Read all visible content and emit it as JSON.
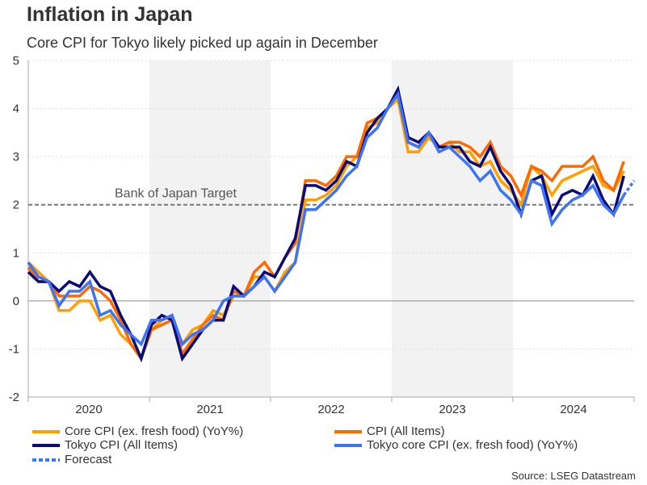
{
  "title": "Inflation in Japan",
  "subtitle": "Core CPI for Tokyo likely picked up again in December",
  "source": "Source: LSEG Datastream",
  "chart_data": {
    "type": "line",
    "x_start": "2020-01",
    "x_end": "2024-12",
    "frequency": "monthly",
    "ylim": [
      -2,
      5
    ],
    "yticks": [
      "5",
      "4",
      "3",
      "2",
      "1",
      "0",
      "-1",
      "-2"
    ],
    "xtick_labels": [
      "2020",
      "2021",
      "2022",
      "2023",
      "2024"
    ],
    "shaded_years": [
      "2021",
      "2023"
    ],
    "grid": true,
    "reference_line": {
      "value": 2,
      "label": "Bank of Japan Target"
    },
    "legend_placement": "bottom",
    "series": [
      {
        "name": "Core CPI (ex. fresh food) (YoY%)",
        "color": "#ff9f00",
        "values": [
          0.8,
          0.6,
          0.4,
          -0.2,
          -0.2,
          0.0,
          0.0,
          -0.4,
          -0.3,
          -0.7,
          -0.9,
          -1.2,
          -0.6,
          -0.4,
          -0.3,
          -0.9,
          -0.6,
          -0.5,
          -0.2,
          -0.3,
          0.1,
          0.1,
          0.5,
          0.5,
          0.2,
          0.6,
          0.8,
          2.1,
          2.1,
          2.2,
          2.4,
          2.8,
          3.0,
          3.6,
          3.7,
          4.0,
          4.2,
          3.1,
          3.1,
          3.4,
          3.2,
          3.3,
          3.1,
          3.1,
          2.8,
          2.9,
          2.5,
          2.3,
          2.0,
          2.8,
          2.6,
          2.2,
          2.5,
          2.6,
          2.7,
          2.8,
          2.4,
          2.3,
          2.7
        ]
      },
      {
        "name": "CPI (All Items)",
        "color": "#ff6a00",
        "values": [
          0.7,
          0.4,
          0.4,
          0.1,
          0.1,
          0.1,
          0.3,
          0.2,
          0.0,
          -0.4,
          -0.9,
          -1.2,
          -0.6,
          -0.5,
          -0.4,
          -1.1,
          -0.8,
          -0.5,
          -0.3,
          -0.4,
          0.2,
          0.1,
          0.6,
          0.8,
          0.5,
          0.9,
          1.2,
          2.5,
          2.5,
          2.4,
          2.6,
          3.0,
          3.0,
          3.7,
          3.8,
          4.0,
          4.3,
          3.3,
          3.2,
          3.5,
          3.2,
          3.3,
          3.3,
          3.2,
          3.0,
          3.3,
          2.8,
          2.6,
          2.2,
          2.8,
          2.7,
          2.5,
          2.8,
          2.8,
          2.8,
          3.0,
          2.5,
          2.3,
          2.9
        ]
      },
      {
        "name": "Tokyo CPI (All Items)",
        "color": "#0b0b78",
        "values": [
          0.6,
          0.4,
          0.4,
          0.2,
          0.4,
          0.3,
          0.6,
          0.3,
          0.2,
          -0.3,
          -0.7,
          -1.2,
          -0.5,
          -0.3,
          -0.4,
          -1.2,
          -0.9,
          -0.6,
          -0.4,
          -0.4,
          0.3,
          0.1,
          0.3,
          0.6,
          0.5,
          0.9,
          1.3,
          2.4,
          2.4,
          2.3,
          2.5,
          2.9,
          2.8,
          3.5,
          3.8,
          4.0,
          4.4,
          3.4,
          3.3,
          3.5,
          3.2,
          3.2,
          3.2,
          2.9,
          2.8,
          3.2,
          2.7,
          2.4,
          1.8,
          2.5,
          2.6,
          1.8,
          2.2,
          2.3,
          2.2,
          2.6,
          2.1,
          1.8,
          2.6
        ]
      },
      {
        "name": "Tokyo core CPI (ex. fresh food) (YoY%)",
        "color": "#3d73f5",
        "values": [
          0.8,
          0.5,
          0.4,
          -0.1,
          0.2,
          0.2,
          0.4,
          -0.3,
          -0.2,
          -0.5,
          -0.7,
          -0.9,
          -0.4,
          -0.4,
          -0.3,
          -0.9,
          -0.7,
          -0.6,
          -0.4,
          0.0,
          0.1,
          0.1,
          0.3,
          0.5,
          0.2,
          0.5,
          0.8,
          1.9,
          1.9,
          2.1,
          2.3,
          2.6,
          2.8,
          3.4,
          3.6,
          4.0,
          4.3,
          3.3,
          3.2,
          3.5,
          3.1,
          3.2,
          3.0,
          2.8,
          2.5,
          2.7,
          2.3,
          2.1,
          1.8,
          2.5,
          2.4,
          1.6,
          1.9,
          2.1,
          2.2,
          2.4,
          2.0,
          1.8,
          2.2
        ]
      },
      {
        "name": "Forecast",
        "color": "#3d73f5",
        "dotted": true,
        "x": [
          "2024-11",
          "2024-12"
        ],
        "values": [
          2.2,
          2.5
        ]
      }
    ]
  }
}
